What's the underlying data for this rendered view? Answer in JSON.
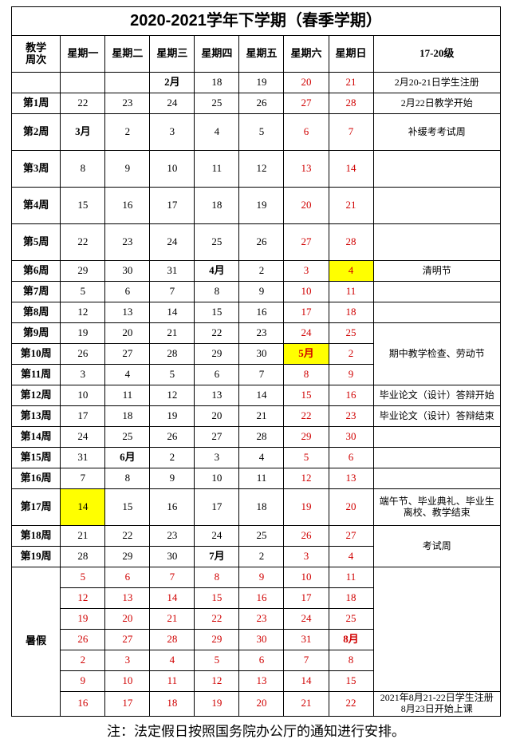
{
  "title": "2020-2021学年下学期（春季学期）",
  "footnote": "注：法定假日按照国务院办公厅的通知进行安排。",
  "headers": {
    "weekcol": "教学\n周次",
    "days": [
      "星期一",
      "星期二",
      "星期三",
      "星期四",
      "星期五",
      "星期六",
      "星期日"
    ],
    "notecol": "17-20级"
  },
  "rows": [
    {
      "week": "",
      "d": [
        {
          "v": ""
        },
        {
          "v": ""
        },
        {
          "v": "2月",
          "bold": true
        },
        {
          "v": "18"
        },
        {
          "v": "19"
        },
        {
          "v": "20",
          "red": true
        },
        {
          "v": "21",
          "red": true
        }
      ],
      "note": "2月20-21日学生注册"
    },
    {
      "week": "第1周",
      "d": [
        {
          "v": "22"
        },
        {
          "v": "23"
        },
        {
          "v": "24"
        },
        {
          "v": "25"
        },
        {
          "v": "26"
        },
        {
          "v": "27",
          "red": true
        },
        {
          "v": "28",
          "red": true
        }
      ],
      "note": "2月22日教学开始"
    },
    {
      "week": "第2周",
      "tall": true,
      "d": [
        {
          "v": "3月",
          "bold": true
        },
        {
          "v": "2"
        },
        {
          "v": "3"
        },
        {
          "v": "4"
        },
        {
          "v": "5"
        },
        {
          "v": "6",
          "red": true
        },
        {
          "v": "7",
          "red": true
        }
      ],
      "note": "补缓考考试周"
    },
    {
      "week": "第3周",
      "tall": true,
      "d": [
        {
          "v": "8"
        },
        {
          "v": "9"
        },
        {
          "v": "10"
        },
        {
          "v": "11"
        },
        {
          "v": "12"
        },
        {
          "v": "13",
          "red": true
        },
        {
          "v": "14",
          "red": true
        }
      ],
      "note": ""
    },
    {
      "week": "第4周",
      "tall": true,
      "d": [
        {
          "v": "15"
        },
        {
          "v": "16"
        },
        {
          "v": "17"
        },
        {
          "v": "18"
        },
        {
          "v": "19"
        },
        {
          "v": "20",
          "red": true
        },
        {
          "v": "21",
          "red": true
        }
      ],
      "note": ""
    },
    {
      "week": "第5周",
      "tall": true,
      "d": [
        {
          "v": "22"
        },
        {
          "v": "23"
        },
        {
          "v": "24"
        },
        {
          "v": "25"
        },
        {
          "v": "26"
        },
        {
          "v": "27",
          "red": true
        },
        {
          "v": "28",
          "red": true
        }
      ],
      "note": ""
    },
    {
      "week": "第6周",
      "d": [
        {
          "v": "29"
        },
        {
          "v": "30"
        },
        {
          "v": "31"
        },
        {
          "v": "4月",
          "bold": true
        },
        {
          "v": "2"
        },
        {
          "v": "3",
          "red": true
        },
        {
          "v": "4",
          "red": true,
          "hl": true
        }
      ],
      "note": "清明节"
    },
    {
      "week": "第7周",
      "d": [
        {
          "v": "5"
        },
        {
          "v": "6"
        },
        {
          "v": "7"
        },
        {
          "v": "8"
        },
        {
          "v": "9"
        },
        {
          "v": "10",
          "red": true
        },
        {
          "v": "11",
          "red": true
        }
      ],
      "note": ""
    },
    {
      "week": "第8周",
      "d": [
        {
          "v": "12"
        },
        {
          "v": "13"
        },
        {
          "v": "14"
        },
        {
          "v": "15"
        },
        {
          "v": "16"
        },
        {
          "v": "17",
          "red": true
        },
        {
          "v": "18",
          "red": true
        }
      ],
      "note": "",
      "note_rowspan": 0
    },
    {
      "week": "第9周",
      "d": [
        {
          "v": "19"
        },
        {
          "v": "20"
        },
        {
          "v": "21"
        },
        {
          "v": "22"
        },
        {
          "v": "23"
        },
        {
          "v": "24",
          "red": true
        },
        {
          "v": "25",
          "red": true
        }
      ],
      "note": "期中教学检查、劳动节",
      "note_rowspan": 3
    },
    {
      "week": "第10周",
      "d": [
        {
          "v": "26"
        },
        {
          "v": "27"
        },
        {
          "v": "28"
        },
        {
          "v": "29"
        },
        {
          "v": "30"
        },
        {
          "v": "5月",
          "red": true,
          "bold": true,
          "hl": true
        },
        {
          "v": "2",
          "red": true
        }
      ],
      "note_skip": true
    },
    {
      "week": "第11周",
      "d": [
        {
          "v": "3"
        },
        {
          "v": "4"
        },
        {
          "v": "5"
        },
        {
          "v": "6"
        },
        {
          "v": "7"
        },
        {
          "v": "8",
          "red": true
        },
        {
          "v": "9",
          "red": true
        }
      ],
      "note_skip": true
    },
    {
      "week": "第12周",
      "d": [
        {
          "v": "10"
        },
        {
          "v": "11"
        },
        {
          "v": "12"
        },
        {
          "v": "13"
        },
        {
          "v": "14"
        },
        {
          "v": "15",
          "red": true
        },
        {
          "v": "16",
          "red": true
        }
      ],
      "note": "毕业论文（设计）答辩开始"
    },
    {
      "week": "第13周",
      "d": [
        {
          "v": "17"
        },
        {
          "v": "18"
        },
        {
          "v": "19"
        },
        {
          "v": "20"
        },
        {
          "v": "21"
        },
        {
          "v": "22",
          "red": true
        },
        {
          "v": "23",
          "red": true
        }
      ],
      "note": "毕业论文（设计）答辩结束"
    },
    {
      "week": "第14周",
      "d": [
        {
          "v": "24"
        },
        {
          "v": "25"
        },
        {
          "v": "26"
        },
        {
          "v": "27"
        },
        {
          "v": "28"
        },
        {
          "v": "29",
          "red": true
        },
        {
          "v": "30",
          "red": true
        }
      ],
      "note": ""
    },
    {
      "week": "第15周",
      "d": [
        {
          "v": "31"
        },
        {
          "v": "6月",
          "bold": true
        },
        {
          "v": "2"
        },
        {
          "v": "3"
        },
        {
          "v": "4"
        },
        {
          "v": "5",
          "red": true
        },
        {
          "v": "6",
          "red": true
        }
      ],
      "note": ""
    },
    {
      "week": "第16周",
      "d": [
        {
          "v": "7"
        },
        {
          "v": "8"
        },
        {
          "v": "9"
        },
        {
          "v": "10"
        },
        {
          "v": "11"
        },
        {
          "v": "12",
          "red": true
        },
        {
          "v": "13",
          "red": true
        }
      ],
      "note": ""
    },
    {
      "week": "第17周",
      "tall": true,
      "d": [
        {
          "v": "14",
          "hl": true
        },
        {
          "v": "15"
        },
        {
          "v": "16"
        },
        {
          "v": "17"
        },
        {
          "v": "18"
        },
        {
          "v": "19",
          "red": true
        },
        {
          "v": "20",
          "red": true
        }
      ],
      "note": "端午节、毕业典礼、毕业生离校、教学结束"
    },
    {
      "week": "第18周",
      "d": [
        {
          "v": "21"
        },
        {
          "v": "22"
        },
        {
          "v": "23"
        },
        {
          "v": "24"
        },
        {
          "v": "25"
        },
        {
          "v": "26",
          "red": true
        },
        {
          "v": "27",
          "red": true
        }
      ],
      "note": "考试周",
      "note_rowspan": 2
    },
    {
      "week": "第19周",
      "d": [
        {
          "v": "28"
        },
        {
          "v": "29"
        },
        {
          "v": "30"
        },
        {
          "v": "7月",
          "bold": true
        },
        {
          "v": "2"
        },
        {
          "v": "3",
          "red": true
        },
        {
          "v": "4",
          "red": true
        }
      ],
      "note_skip": true
    },
    {
      "week": "暑假",
      "week_rowspan": 7,
      "d": [
        {
          "v": "5",
          "red": true
        },
        {
          "v": "6",
          "red": true
        },
        {
          "v": "7",
          "red": true
        },
        {
          "v": "8",
          "red": true
        },
        {
          "v": "9",
          "red": true
        },
        {
          "v": "10",
          "red": true
        },
        {
          "v": "11",
          "red": true
        }
      ],
      "note": "",
      "note_rowspan": 6
    },
    {
      "week_skip": true,
      "d": [
        {
          "v": "12",
          "red": true
        },
        {
          "v": "13",
          "red": true
        },
        {
          "v": "14",
          "red": true
        },
        {
          "v": "15",
          "red": true
        },
        {
          "v": "16",
          "red": true
        },
        {
          "v": "17",
          "red": true
        },
        {
          "v": "18",
          "red": true
        }
      ],
      "note_skip": true
    },
    {
      "week_skip": true,
      "d": [
        {
          "v": "19",
          "red": true
        },
        {
          "v": "20",
          "red": true
        },
        {
          "v": "21",
          "red": true
        },
        {
          "v": "22",
          "red": true
        },
        {
          "v": "23",
          "red": true
        },
        {
          "v": "24",
          "red": true
        },
        {
          "v": "25",
          "red": true
        }
      ],
      "note_skip": true
    },
    {
      "week_skip": true,
      "d": [
        {
          "v": "26",
          "red": true
        },
        {
          "v": "27",
          "red": true
        },
        {
          "v": "28",
          "red": true
        },
        {
          "v": "29",
          "red": true
        },
        {
          "v": "30",
          "red": true
        },
        {
          "v": "31",
          "red": true
        },
        {
          "v": "8月",
          "red": true,
          "bold": true
        }
      ],
      "note_skip": true
    },
    {
      "week_skip": true,
      "d": [
        {
          "v": "2",
          "red": true
        },
        {
          "v": "3",
          "red": true
        },
        {
          "v": "4",
          "red": true
        },
        {
          "v": "5",
          "red": true
        },
        {
          "v": "6",
          "red": true
        },
        {
          "v": "7",
          "red": true
        },
        {
          "v": "8",
          "red": true
        }
      ],
      "note_skip": true
    },
    {
      "week_skip": true,
      "d": [
        {
          "v": "9",
          "red": true
        },
        {
          "v": "10",
          "red": true
        },
        {
          "v": "11",
          "red": true
        },
        {
          "v": "12",
          "red": true
        },
        {
          "v": "13",
          "red": true
        },
        {
          "v": "14",
          "red": true
        },
        {
          "v": "15",
          "red": true
        }
      ],
      "note_skip": true
    },
    {
      "week_skip": true,
      "d": [
        {
          "v": "16",
          "red": true
        },
        {
          "v": "17",
          "red": true
        },
        {
          "v": "18",
          "red": true
        },
        {
          "v": "19",
          "red": true
        },
        {
          "v": "20",
          "red": true
        },
        {
          "v": "21",
          "red": true
        },
        {
          "v": "22",
          "red": true
        }
      ],
      "note": "2021年8月21-22日学生注册\n8月23日开始上课"
    }
  ]
}
